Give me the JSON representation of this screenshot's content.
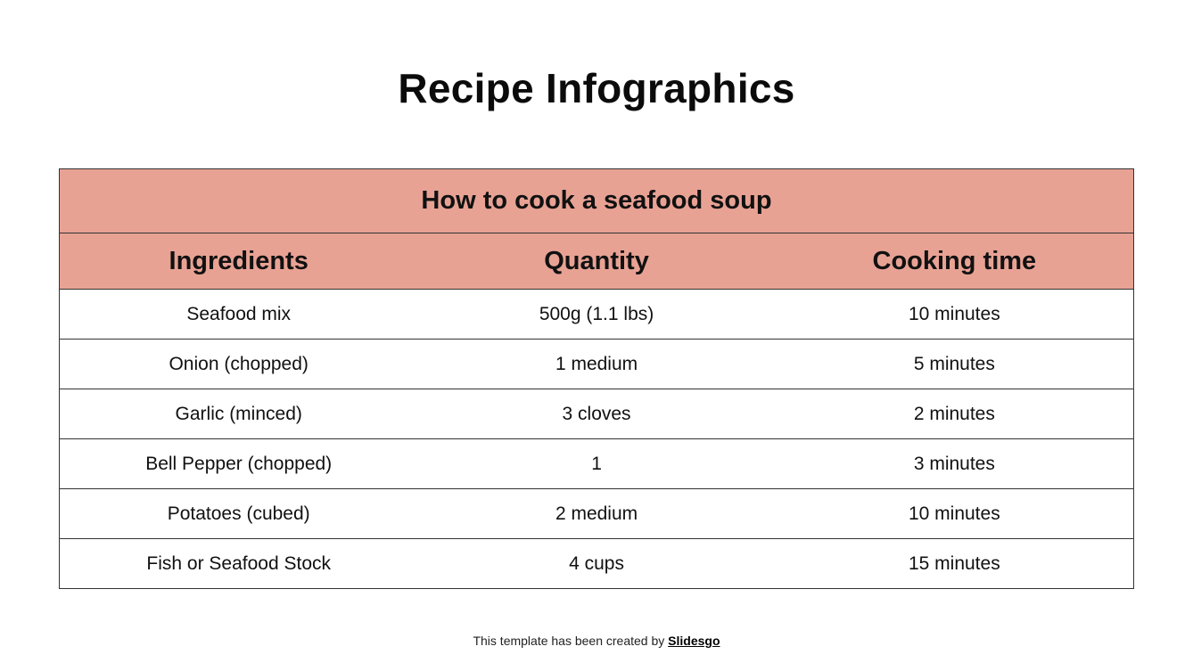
{
  "slide": {
    "title": "Recipe Infographics",
    "table": {
      "caption": "How to cook a seafood soup",
      "columns": [
        "Ingredients",
        "Quantity",
        "Cooking time"
      ],
      "rows": [
        [
          "Seafood mix",
          "500g (1.1 lbs)",
          "10 minutes"
        ],
        [
          "Onion (chopped)",
          "1 medium",
          "5 minutes"
        ],
        [
          "Garlic (minced)",
          "3 cloves",
          "2 minutes"
        ],
        [
          "Bell Pepper (chopped)",
          "1",
          "3 minutes"
        ],
        [
          "Potatoes (cubed)",
          "2 medium",
          "10 minutes"
        ],
        [
          "Fish or Seafood Stock",
          "4 cups",
          "15 minutes"
        ]
      ],
      "header_color": "#e8a294"
    },
    "footer": {
      "text": "This template has been created by ",
      "link": "Slidesgo"
    }
  }
}
